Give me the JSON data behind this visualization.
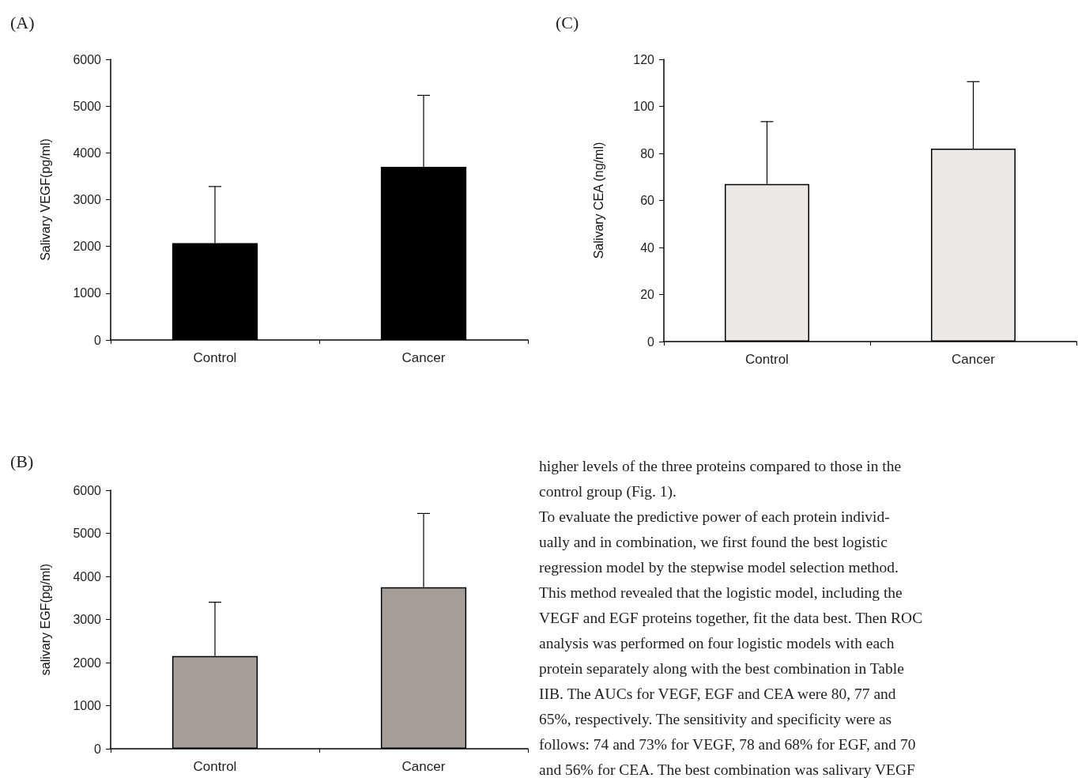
{
  "chart_data": [
    {
      "type": "bar",
      "title": "(A)",
      "ylabel": "Salivary VEGF(pg/ml)",
      "categories": [
        "Control",
        "Cancer"
      ],
      "series": [
        {
          "color": "#000000",
          "values": [
            2070,
            3700
          ],
          "errors": [
            [
              2070,
              3280
            ],
            [
              3700,
              5230
            ]
          ]
        }
      ],
      "ylim": [
        0,
        6000
      ],
      "yticks": [
        0,
        1000,
        2000,
        3000,
        4000,
        5000,
        6000
      ]
    },
    {
      "type": "bar",
      "title": "(C)",
      "ylabel": "Salivary CEA (ng/ml)",
      "categories": [
        "Control",
        "Cancer"
      ],
      "series": [
        {
          "color": "#ece8e6",
          "values": [
            67,
            82
          ],
          "errors": [
            [
              67,
              93.5
            ],
            [
              82,
              110.5
            ]
          ]
        }
      ],
      "ylim": [
        0,
        120
      ],
      "yticks": [
        0,
        20,
        40,
        60,
        80,
        100,
        120
      ]
    },
    {
      "type": "bar",
      "title": "(B)",
      "ylabel": "salivary EGF(pg/ml)",
      "categories": [
        "Control",
        "Cancer"
      ],
      "series": [
        {
          "color": "#a59d9a",
          "values": [
            2150,
            3750
          ],
          "errors": [
            [
              2150,
              3400
            ],
            [
              3750,
              5460
            ]
          ]
        }
      ],
      "ylim": [
        0,
        6000
      ],
      "yticks": [
        0,
        1000,
        2000,
        3000,
        4000,
        5000,
        6000
      ]
    },
    {
      "type": "other",
      "annotations": [
        "higher levels of the three proteins compared to those in the",
        "control group (Fig. 1).",
        "To evaluate the predictive power of each protein individ-",
        "ually and in combination, we first found the best logistic",
        "regression model by the stepwise model selection method.",
        "This method revealed that the logistic model, including the",
        "VEGF and EGF proteins together, fit the data best. Then ROC",
        "analysis was performed on four logistic models with each",
        "protein separately along with the best combination in Table",
        "IIB. The AUCs for VEGF, EGF and CEA were 80, 77 and",
        "65%, respectively. The sensitivity and specificity were as",
        "follows: 74 and 73% for VEGF, 78 and 68% for EGF, and 70",
        "and 56% for CEA. The best combination was salivary VEGF"
      ]
    }
  ]
}
